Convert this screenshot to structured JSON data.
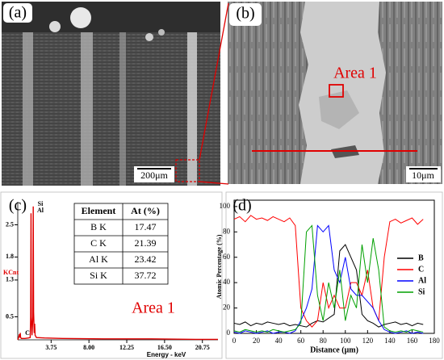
{
  "panels": {
    "a": {
      "label": "(a)",
      "scale_bar": "200μm"
    },
    "b": {
      "label": "(b)",
      "annotation": "Area 1",
      "scale_bar": "10μm"
    },
    "c": {
      "label": "(c)",
      "annotation": "Area 1",
      "table": {
        "header": [
          "Element",
          "At (%)"
        ],
        "rows": [
          [
            "B K",
            "17.47"
          ],
          [
            "C K",
            "21.39"
          ],
          [
            "Al K",
            "23.42"
          ],
          [
            "Si K",
            "37.72"
          ]
        ]
      }
    },
    "d": {
      "label": "(d)"
    }
  },
  "chart_data": [
    {
      "type": "line",
      "xlabel": "Energy - keV",
      "ylabel": "KCnt",
      "color": "#e00000",
      "peak_labels": [
        "Si",
        "Al",
        "C"
      ],
      "x": [
        0,
        0.1,
        0.18,
        0.25,
        0.28,
        0.32,
        0.4,
        0.8,
        1.2,
        1.4,
        1.45,
        1.49,
        1.53,
        1.6,
        1.7,
        1.74,
        1.78,
        1.85,
        1.9,
        1.95,
        2.1,
        3,
        5,
        10,
        15,
        20,
        22.5
      ],
      "values": [
        0,
        0.05,
        0.12,
        0.05,
        0.15,
        0.05,
        0.03,
        0.03,
        0.04,
        0.05,
        0.5,
        2.75,
        0.5,
        0.1,
        0.5,
        2.9,
        0.6,
        0.15,
        0.35,
        0.1,
        0.05,
        0.04,
        0.03,
        0.02,
        0.02,
        0.01,
        0.01
      ],
      "xlim": [
        0,
        22.5
      ],
      "ylim": [
        0,
        3.0
      ],
      "xticks": [
        3.75,
        {
          "value": 8,
          "label": "8.00"
        },
        12.25,
        {
          "value": 16.5,
          "label": "16.50"
        },
        20.75
      ],
      "yticks": [
        0.5,
        1.3,
        1.8,
        2.5
      ]
    },
    {
      "type": "line",
      "xlabel": "Distance (μm)",
      "ylabel": "Atomic Percentage (%)",
      "legend": "right",
      "x": [
        0,
        5,
        10,
        15,
        20,
        25,
        30,
        35,
        40,
        45,
        50,
        55,
        60,
        65,
        70,
        75,
        80,
        85,
        90,
        95,
        100,
        105,
        110,
        115,
        120,
        125,
        130,
        135,
        140,
        145,
        150,
        155,
        160,
        165,
        170
      ],
      "series": [
        {
          "name": "B",
          "color": "#000000",
          "values": [
            8,
            7,
            9,
            6,
            8,
            7,
            9,
            8,
            7,
            8,
            6,
            7,
            6,
            5,
            8,
            10,
            9,
            12,
            15,
            65,
            70,
            60,
            50,
            15,
            10,
            8,
            5,
            7,
            8,
            9,
            7,
            8,
            6,
            8,
            7
          ]
        },
        {
          "name": "C",
          "color": "#ff0000",
          "values": [
            90,
            92,
            88,
            93,
            90,
            91,
            89,
            92,
            90,
            88,
            91,
            85,
            20,
            10,
            5,
            10,
            40,
            20,
            30,
            20,
            20,
            40,
            40,
            30,
            50,
            20,
            10,
            60,
            88,
            90,
            87,
            89,
            91,
            86,
            90
          ]
        },
        {
          "name": "Al",
          "color": "#0000ff",
          "values": [
            1,
            0,
            2,
            1,
            0,
            1,
            2,
            0,
            1,
            1,
            0,
            2,
            10,
            20,
            35,
            85,
            80,
            85,
            50,
            40,
            60,
            35,
            30,
            30,
            25,
            20,
            10,
            3,
            1,
            0,
            1,
            2,
            0,
            1,
            0
          ]
        },
        {
          "name": "Si",
          "color": "#00a000",
          "values": [
            2,
            1,
            3,
            2,
            1,
            2,
            1,
            3,
            2,
            1,
            2,
            3,
            8,
            80,
            85,
            30,
            10,
            40,
            20,
            50,
            10,
            30,
            20,
            70,
            40,
            75,
            50,
            5,
            2,
            1,
            2,
            1,
            3,
            2,
            1
          ]
        }
      ],
      "xlim": [
        0,
        180
      ],
      "ylim": [
        0,
        105
      ],
      "xticks": [
        0,
        20,
        40,
        60,
        80,
        100,
        120,
        140,
        160,
        180
      ],
      "yticks": [
        0,
        20,
        40,
        60,
        80,
        100
      ]
    }
  ]
}
